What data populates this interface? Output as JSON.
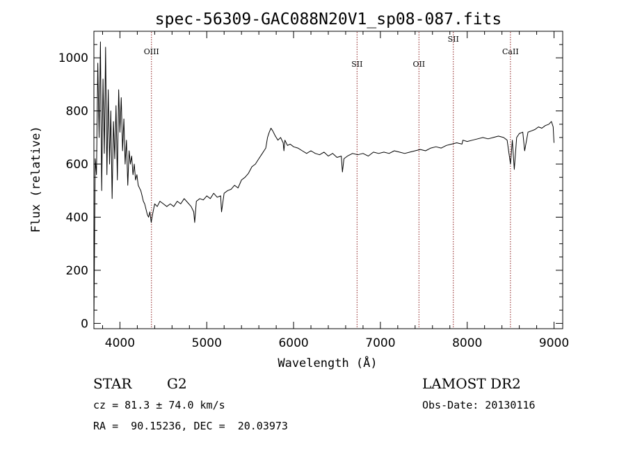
{
  "title": "spec-56309-GAC088N20V1_sp08-087.fits",
  "info": {
    "class": "STAR",
    "subclass": "G2",
    "cz": "cz = 81.3 ± 74.0 km/s",
    "coords": "RA =  90.15236, DEC =  20.03973",
    "survey": "LAMOST DR2",
    "obs_date": "Obs-Date: 20130116"
  },
  "chart_data": {
    "type": "line",
    "title": "spec-56309-GAC088N20V1_sp08-087.fits",
    "xlabel": "Wavelength (Å)",
    "ylabel": "Flux (relative)",
    "xlim": [
      3700,
      9100
    ],
    "ylim": [
      -20,
      1100
    ],
    "xticks": [
      4000,
      5000,
      6000,
      7000,
      8000,
      9000
    ],
    "yticks": [
      0,
      200,
      400,
      600,
      800,
      1000
    ],
    "x_minor_step": 200,
    "y_minor_step": 50,
    "line_color": "#000000",
    "marker_color": "#8b1a1a",
    "spectral_lines": [
      {
        "label": "OIII",
        "x": 4363,
        "level": "top"
      },
      {
        "label": "SII",
        "x": 6731,
        "level": "mid"
      },
      {
        "label": "OII",
        "x": 7444,
        "level": "mid"
      },
      {
        "label": "SII",
        "x": 7840,
        "level": "top"
      },
      {
        "label": "CaII",
        "x": 8498,
        "level": "top"
      }
    ],
    "series": [
      {
        "x": [
          3700,
          3715,
          3730,
          3745,
          3760,
          3775,
          3790,
          3805,
          3820,
          3835,
          3850,
          3865,
          3880,
          3895,
          3910,
          3925,
          3940,
          3955,
          3970,
          3985,
          4000,
          4015,
          4030,
          4045,
          4060,
          4075,
          4090,
          4105,
          4120,
          4135,
          4150,
          4165,
          4180,
          4195,
          4210,
          4225,
          4240,
          4255,
          4270,
          4285,
          4300,
          4315,
          4330,
          4345,
          4360,
          4375,
          4400,
          4430,
          4460,
          4500,
          4540,
          4580,
          4620,
          4660,
          4700,
          4740,
          4780,
          4820,
          4850,
          4861,
          4880,
          4920,
          4960,
          5000,
          5040,
          5080,
          5120,
          5160,
          5170,
          5200,
          5240,
          5280,
          5320,
          5360,
          5400,
          5440,
          5480,
          5520,
          5560,
          5600,
          5640,
          5680,
          5700,
          5720,
          5740,
          5760,
          5790,
          5820,
          5850,
          5880,
          5889,
          5900,
          5930,
          5960,
          6000,
          6050,
          6100,
          6150,
          6200,
          6250,
          6300,
          6350,
          6400,
          6450,
          6500,
          6550,
          6563,
          6580,
          6620,
          6680,
          6740,
          6800,
          6860,
          6920,
          6980,
          7040,
          7100,
          7160,
          7220,
          7280,
          7340,
          7400,
          7460,
          7520,
          7580,
          7640,
          7700,
          7760,
          7820,
          7880,
          7940,
          7950,
          8000,
          8060,
          8120,
          8180,
          8240,
          8300,
          8360,
          8420,
          8460,
          8498,
          8520,
          8542,
          8570,
          8600,
          8640,
          8662,
          8700,
          8740,
          8780,
          8820,
          8860,
          8900,
          8940,
          8970,
          8990,
          9000
        ],
        "y": [
          0,
          620,
          560,
          980,
          700,
          1060,
          500,
          920,
          640,
          1040,
          560,
          880,
          600,
          800,
          470,
          760,
          620,
          820,
          540,
          880,
          720,
          850,
          650,
          770,
          600,
          690,
          520,
          650,
          600,
          630,
          560,
          600,
          540,
          560,
          520,
          510,
          500,
          480,
          460,
          450,
          430,
          410,
          400,
          420,
          380,
          410,
          450,
          440,
          460,
          450,
          440,
          450,
          440,
          460,
          450,
          470,
          455,
          440,
          420,
          380,
          460,
          470,
          465,
          480,
          470,
          490,
          475,
          480,
          420,
          490,
          500,
          505,
          520,
          510,
          540,
          550,
          565,
          590,
          600,
          620,
          640,
          660,
          700,
          720,
          735,
          725,
          705,
          690,
          700,
          680,
          650,
          690,
          670,
          675,
          665,
          660,
          650,
          640,
          650,
          640,
          635,
          645,
          630,
          640,
          625,
          630,
          570,
          620,
          630,
          640,
          635,
          640,
          630,
          645,
          640,
          645,
          640,
          650,
          645,
          640,
          645,
          650,
          655,
          650,
          660,
          665,
          660,
          670,
          675,
          680,
          675,
          690,
          685,
          690,
          695,
          700,
          695,
          700,
          705,
          700,
          690,
          600,
          690,
          580,
          700,
          715,
          720,
          650,
          720,
          725,
          730,
          740,
          735,
          745,
          750,
          760,
          740,
          680
        ]
      }
    ]
  }
}
